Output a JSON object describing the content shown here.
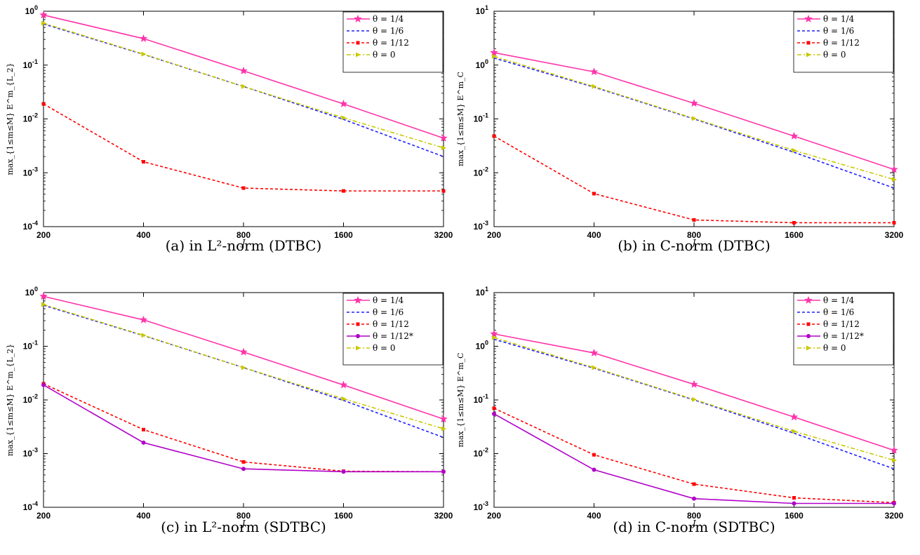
{
  "chart_data": [
    {
      "type": "line",
      "caption": "(a) in L²-norm (DTBC)",
      "xlabel": "J",
      "ylabel": "max_{1≤m≤M} E^m_{L_2}",
      "x_scale": "log2",
      "y_scale": "log10",
      "x": [
        200,
        400,
        800,
        1600,
        3200
      ],
      "x_ticks": [
        "200",
        "400",
        "800",
        "1600",
        "3200"
      ],
      "ylim": [
        0.0001,
        1
      ],
      "y_ticks": [
        {
          "label": "10",
          "exp": "-4"
        },
        {
          "label": "10",
          "exp": "-3"
        },
        {
          "label": "10",
          "exp": "-2"
        },
        {
          "label": "10",
          "exp": "-1"
        },
        {
          "label": "10",
          "exp": "0"
        }
      ],
      "legend_position": "top-right",
      "series": [
        {
          "name": "θ = 1/4",
          "color": "#ff33aa",
          "style": "solid",
          "marker": "star",
          "values": [
            0.85,
            0.31,
            0.078,
            0.019,
            0.0044
          ]
        },
        {
          "name": "θ = 1/6",
          "color": "#1f1fff",
          "style": "dashed",
          "marker": "none",
          "values": [
            0.58,
            0.158,
            0.04,
            0.0098,
            0.002
          ]
        },
        {
          "name": "θ = 1/12",
          "color": "#ff0000",
          "style": "dashed",
          "marker": "square",
          "values": [
            0.019,
            0.0016,
            0.00052,
            0.00046,
            0.00046
          ]
        },
        {
          "name": "θ = 0",
          "color": "#c8c800",
          "style": "dashdot",
          "marker": "triangle-right",
          "values": [
            0.6,
            0.16,
            0.04,
            0.0105,
            0.0029
          ]
        }
      ]
    },
    {
      "type": "line",
      "caption": "(b) in C-norm (DTBC)",
      "xlabel": "J",
      "ylabel": "max_{1≤m≤M} E^m_C",
      "x_scale": "log2",
      "y_scale": "log10",
      "x": [
        200,
        400,
        800,
        1600,
        3200
      ],
      "x_ticks": [
        "200",
        "400",
        "800",
        "1600",
        "3200"
      ],
      "ylim": [
        0.001,
        10
      ],
      "y_ticks": [
        {
          "label": "10",
          "exp": "-3"
        },
        {
          "label": "10",
          "exp": "-2"
        },
        {
          "label": "10",
          "exp": "-1"
        },
        {
          "label": "10",
          "exp": "0"
        },
        {
          "label": "10",
          "exp": "1"
        }
      ],
      "legend_position": "top-right",
      "series": [
        {
          "name": "θ = 1/4",
          "color": "#ff33aa",
          "style": "solid",
          "marker": "star",
          "values": [
            1.7,
            0.75,
            0.195,
            0.048,
            0.0115
          ]
        },
        {
          "name": "θ = 1/6",
          "color": "#1f1fff",
          "style": "dashed",
          "marker": "none",
          "values": [
            1.35,
            0.39,
            0.1,
            0.024,
            0.0052
          ]
        },
        {
          "name": "θ = 1/12",
          "color": "#ff0000",
          "style": "dashed",
          "marker": "square",
          "values": [
            0.048,
            0.0041,
            0.00133,
            0.00118,
            0.00118
          ]
        },
        {
          "name": "θ = 0",
          "color": "#c8c800",
          "style": "dashdot",
          "marker": "triangle-right",
          "values": [
            1.45,
            0.4,
            0.102,
            0.026,
            0.0075
          ]
        }
      ]
    },
    {
      "type": "line",
      "caption": "(c) in L²-norm (SDTBC)",
      "xlabel": "J",
      "ylabel": "max_{1≤m≤M} E^m_{L_2}",
      "x_scale": "log2",
      "y_scale": "log10",
      "x": [
        200,
        400,
        800,
        1600,
        3200
      ],
      "x_ticks": [
        "200",
        "400",
        "800",
        "1600",
        "3200"
      ],
      "ylim": [
        0.0001,
        1
      ],
      "y_ticks": [
        {
          "label": "10",
          "exp": "-4"
        },
        {
          "label": "10",
          "exp": "-3"
        },
        {
          "label": "10",
          "exp": "-2"
        },
        {
          "label": "10",
          "exp": "-1"
        },
        {
          "label": "10",
          "exp": "0"
        }
      ],
      "legend_position": "top-right",
      "series": [
        {
          "name": "θ = 1/4",
          "color": "#ff33aa",
          "style": "solid",
          "marker": "star",
          "values": [
            0.85,
            0.31,
            0.078,
            0.019,
            0.0044
          ]
        },
        {
          "name": "θ = 1/6",
          "color": "#1f1fff",
          "style": "dashed",
          "marker": "none",
          "values": [
            0.58,
            0.158,
            0.04,
            0.0098,
            0.002
          ]
        },
        {
          "name": "θ = 1/12",
          "color": "#ff0000",
          "style": "dashed",
          "marker": "square",
          "values": [
            0.02,
            0.0028,
            0.0007,
            0.00047,
            0.00046
          ]
        },
        {
          "name": "θ = 1/12*",
          "color": "#b000c8",
          "style": "solid",
          "marker": "circle",
          "values": [
            0.019,
            0.0016,
            0.00052,
            0.00046,
            0.00046
          ]
        },
        {
          "name": "θ = 0",
          "color": "#c8c800",
          "style": "dashdot",
          "marker": "triangle-right",
          "values": [
            0.6,
            0.16,
            0.04,
            0.0105,
            0.0029
          ]
        }
      ]
    },
    {
      "type": "line",
      "caption": "(d) in C-norm (SDTBC)",
      "xlabel": "J",
      "ylabel": "max_{1≤m≤M} E^m_C",
      "x_scale": "log2",
      "y_scale": "log10",
      "x": [
        200,
        400,
        800,
        1600,
        3200
      ],
      "x_ticks": [
        "200",
        "400",
        "800",
        "1600",
        "3200"
      ],
      "ylim": [
        0.001,
        10
      ],
      "y_ticks": [
        {
          "label": "10",
          "exp": "-3"
        },
        {
          "label": "10",
          "exp": "-2"
        },
        {
          "label": "10",
          "exp": "-1"
        },
        {
          "label": "10",
          "exp": "0"
        },
        {
          "label": "10",
          "exp": "1"
        }
      ],
      "legend_position": "top-right",
      "series": [
        {
          "name": "θ = 1/4",
          "color": "#ff33aa",
          "style": "solid",
          "marker": "star",
          "values": [
            1.7,
            0.75,
            0.195,
            0.048,
            0.0115
          ]
        },
        {
          "name": "θ = 1/6",
          "color": "#1f1fff",
          "style": "dashed",
          "marker": "none",
          "values": [
            1.35,
            0.39,
            0.1,
            0.024,
            0.0052
          ]
        },
        {
          "name": "θ = 1/12",
          "color": "#ff0000",
          "style": "dashed",
          "marker": "square",
          "values": [
            0.07,
            0.0095,
            0.0027,
            0.0015,
            0.00122
          ]
        },
        {
          "name": "θ = 1/12*",
          "color": "#b000c8",
          "style": "solid",
          "marker": "circle",
          "values": [
            0.055,
            0.005,
            0.00145,
            0.00118,
            0.00118
          ]
        },
        {
          "name": "θ = 0",
          "color": "#c8c800",
          "style": "dashdot",
          "marker": "triangle-right",
          "values": [
            1.45,
            0.4,
            0.102,
            0.026,
            0.0075
          ]
        }
      ]
    }
  ]
}
